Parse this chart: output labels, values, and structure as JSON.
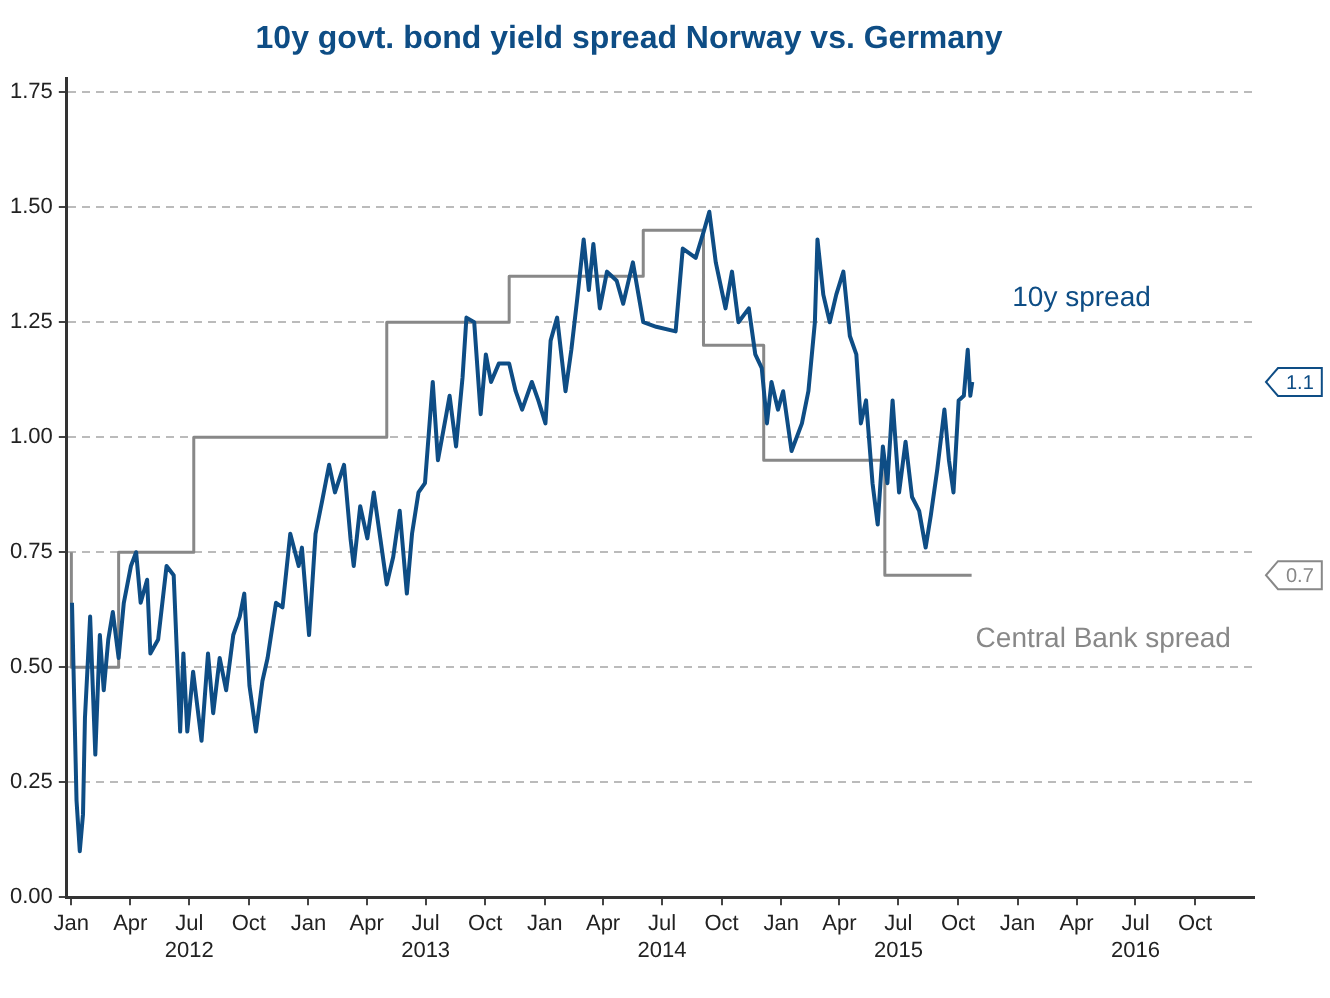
{
  "chart_data": {
    "type": "line",
    "title": "10y govt. bond yield spread Norway vs. Germany",
    "xlim": [
      "2011-12-25",
      "2016-12-31"
    ],
    "ylim": [
      0,
      1.78
    ],
    "yticks": [
      {
        "value": 0,
        "label": "0.00"
      },
      {
        "value": 0.25,
        "label": "0.25"
      },
      {
        "value": 0.5,
        "label": "0.50"
      },
      {
        "value": 0.75,
        "label": "0.75"
      },
      {
        "value": 1,
        "label": "1.00"
      },
      {
        "value": 1.25,
        "label": "1.25"
      },
      {
        "value": 1.5,
        "label": "1.50"
      },
      {
        "value": 1.75,
        "label": "1.75"
      }
    ],
    "xticks": [
      {
        "value": "2012-01",
        "label": "Jan"
      },
      {
        "value": "2012-04",
        "label": "Apr"
      },
      {
        "value": "2012-07",
        "label": "Jul\n2012"
      },
      {
        "value": "2012-10",
        "label": "Oct"
      },
      {
        "value": "2013-01",
        "label": "Jan"
      },
      {
        "value": "2013-04",
        "label": "Apr"
      },
      {
        "value": "2013-07",
        "label": "Jul\n2013"
      },
      {
        "value": "2013-10",
        "label": "Oct"
      },
      {
        "value": "2014-01",
        "label": "Jan"
      },
      {
        "value": "2014-04",
        "label": "Apr"
      },
      {
        "value": "2014-07",
        "label": "Jul\n2014"
      },
      {
        "value": "2014-10",
        "label": "Oct"
      },
      {
        "value": "2015-01",
        "label": "Jan"
      },
      {
        "value": "2015-04",
        "label": "Apr"
      },
      {
        "value": "2015-07",
        "label": "Jul\n2015"
      },
      {
        "value": "2015-10",
        "label": "Oct"
      },
      {
        "value": "2016-01",
        "label": "Jan"
      },
      {
        "value": "2016-04",
        "label": "Apr"
      },
      {
        "value": "2016-07",
        "label": "Jul\n2016"
      },
      {
        "value": "2016-10",
        "label": "Oct"
      }
    ],
    "grid": "y",
    "legend": false,
    "line_style": "solid",
    "marker": "none",
    "annotations": [
      "1.1",
      "0.7"
    ],
    "series": [
      {
        "name": "10y spread",
        "color": "#0e4d85",
        "type": "line",
        "x": [
          "2012-01-02",
          "2012-01-09",
          "2012-01-14",
          "2012-01-19",
          "2012-01-22",
          "2012-01-30",
          "2012-02-07",
          "2012-02-14",
          "2012-02-20",
          "2012-02-27",
          "2012-03-05",
          "2012-03-14",
          "2012-03-22",
          "2012-04-02",
          "2012-04-10",
          "2012-04-17",
          "2012-04-27",
          "2012-05-02",
          "2012-05-14",
          "2012-05-27",
          "2012-06-07",
          "2012-06-17",
          "2012-06-22",
          "2012-06-28",
          "2012-07-07",
          "2012-07-20",
          "2012-07-30",
          "2012-08-07",
          "2012-08-17",
          "2012-08-27",
          "2012-09-07",
          "2012-09-17",
          "2012-09-24",
          "2012-10-02",
          "2012-10-12",
          "2012-10-22",
          "2012-10-30",
          "2012-11-12",
          "2012-11-22",
          "2012-12-04",
          "2012-12-17",
          "2012-12-22",
          "2013-01-02",
          "2013-01-12",
          "2013-01-22",
          "2013-02-02",
          "2013-02-11",
          "2013-02-25",
          "2013-03-07",
          "2013-03-12",
          "2013-03-22",
          "2013-04-02",
          "2013-04-12",
          "2013-04-22",
          "2013-05-02",
          "2013-05-12",
          "2013-05-22",
          "2013-06-02",
          "2013-06-10",
          "2013-06-20",
          "2013-06-30",
          "2013-07-12",
          "2013-07-20",
          "2013-08-02",
          "2013-08-07",
          "2013-08-17",
          "2013-08-27",
          "2013-09-02",
          "2013-09-14",
          "2013-09-24",
          "2013-10-02",
          "2013-10-10",
          "2013-10-22",
          "2013-11-07",
          "2013-11-17",
          "2013-11-27",
          "2013-12-12",
          "2013-12-22",
          "2014-01-02",
          "2014-01-10",
          "2014-01-20",
          "2014-02-02",
          "2014-02-11",
          "2014-02-20",
          "2014-03-02",
          "2014-03-10",
          "2014-03-17",
          "2014-03-27",
          "2014-04-07",
          "2014-04-22",
          "2014-05-02",
          "2014-05-17",
          "2014-06-02",
          "2014-06-22",
          "2014-07-22",
          "2014-08-02",
          "2014-08-22",
          "2014-09-04",
          "2014-09-12",
          "2014-09-22",
          "2014-10-07",
          "2014-10-17",
          "2014-10-27",
          "2014-11-12",
          "2014-11-22",
          "2014-12-02",
          "2014-12-10",
          "2014-12-17",
          "2014-12-27",
          "2015-01-04",
          "2015-01-17",
          "2015-02-02",
          "2015-02-12",
          "2015-02-22",
          "2015-02-26",
          "2015-03-07",
          "2015-03-17",
          "2015-03-27",
          "2015-04-07",
          "2015-04-17",
          "2015-04-27",
          "2015-05-04",
          "2015-05-12",
          "2015-05-22",
          "2015-05-30",
          "2015-06-07",
          "2015-06-14",
          "2015-06-22",
          "2015-07-02",
          "2015-07-12",
          "2015-07-22",
          "2015-08-02",
          "2015-08-12",
          "2015-08-20",
          "2015-08-30",
          "2015-09-10",
          "2015-09-17",
          "2015-09-24",
          "2015-10-02",
          "2015-10-10",
          "2015-10-16",
          "2015-10-20",
          "2015-10-23"
        ],
        "values": [
          0.64,
          0.21,
          0.1,
          0.18,
          0.39,
          0.61,
          0.31,
          0.57,
          0.45,
          0.56,
          0.62,
          0.52,
          0.64,
          0.72,
          0.75,
          0.64,
          0.69,
          0.53,
          0.56,
          0.72,
          0.7,
          0.36,
          0.53,
          0.36,
          0.49,
          0.34,
          0.53,
          0.4,
          0.52,
          0.45,
          0.57,
          0.61,
          0.66,
          0.46,
          0.36,
          0.47,
          0.52,
          0.64,
          0.63,
          0.79,
          0.72,
          0.76,
          0.57,
          0.79,
          0.86,
          0.94,
          0.88,
          0.94,
          0.78,
          0.72,
          0.85,
          0.78,
          0.88,
          0.78,
          0.68,
          0.74,
          0.84,
          0.66,
          0.79,
          0.88,
          0.9,
          1.12,
          0.95,
          1.05,
          1.09,
          0.98,
          1.13,
          1.26,
          1.25,
          1.05,
          1.18,
          1.12,
          1.16,
          1.16,
          1.1,
          1.06,
          1.12,
          1.08,
          1.03,
          1.21,
          1.26,
          1.1,
          1.19,
          1.3,
          1.43,
          1.32,
          1.42,
          1.28,
          1.36,
          1.34,
          1.29,
          1.38,
          1.25,
          1.24,
          1.23,
          1.41,
          1.39,
          1.45,
          1.49,
          1.38,
          1.28,
          1.36,
          1.25,
          1.28,
          1.18,
          1.15,
          1.03,
          1.12,
          1.06,
          1.1,
          0.97,
          1.03,
          1.1,
          1.25,
          1.43,
          1.31,
          1.25,
          1.31,
          1.36,
          1.22,
          1.18,
          1.03,
          1.08,
          0.9,
          0.81,
          0.98,
          0.9,
          1.08,
          0.88,
          0.99,
          0.87,
          0.84,
          0.76,
          0.83,
          0.93,
          1.06,
          0.95,
          0.88,
          1.08,
          1.09,
          1.19,
          1.09,
          1.12
        ]
      },
      {
        "name": "Central Bank spread",
        "color": "#888888",
        "type": "step",
        "x": [
          "2012-01-01",
          "2012-03-14",
          "2012-07-08",
          "2013-05-02",
          "2013-11-07",
          "2014-06-02",
          "2014-09-03",
          "2014-12-05",
          "2015-06-10",
          "2015-09-14",
          "2015-10-22"
        ],
        "values": [
          0.75,
          0.5,
          0.75,
          1.0,
          1.25,
          1.35,
          1.45,
          1.2,
          0.95,
          0.7,
          0.7
        ]
      }
    ]
  }
}
